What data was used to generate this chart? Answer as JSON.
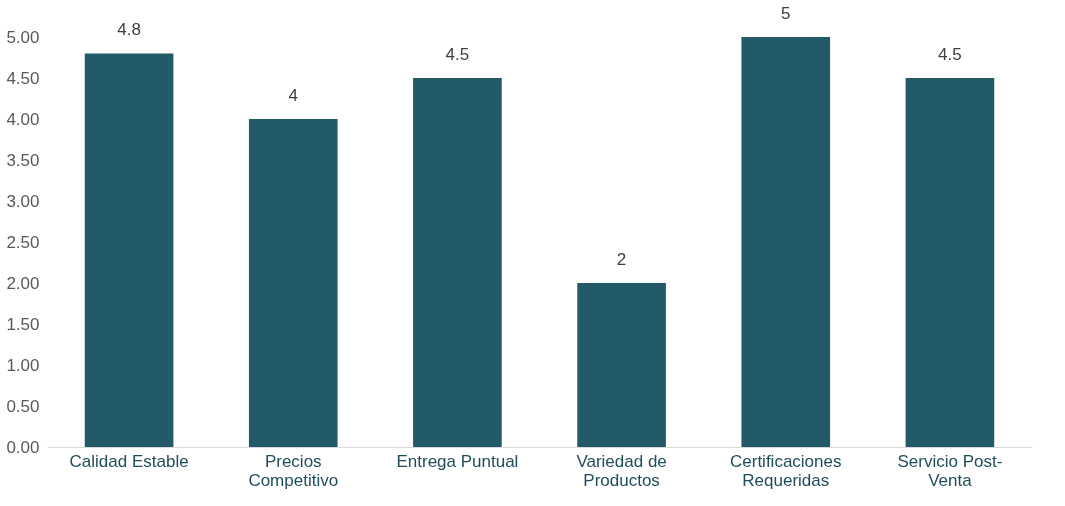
{
  "chart_data": {
    "type": "bar",
    "categories": [
      "Calidad Estable",
      "Precios\nCompetitivo",
      "Entrega Puntual",
      "Variedad de\nProductos",
      "Certificaciones\nRequeridas",
      "Servicio Post-\nVenta"
    ],
    "values": [
      4.8,
      4,
      4.5,
      2,
      5,
      4.5
    ],
    "color": "#235a67",
    "ylim": [
      0,
      5
    ],
    "yticks": [
      {
        "value": 0,
        "label": "0.00"
      },
      {
        "value": 0.5,
        "label": "0.50"
      },
      {
        "value": 1,
        "label": "1.00"
      },
      {
        "value": 1.5,
        "label": "1.50"
      },
      {
        "value": 2,
        "label": "2.00"
      },
      {
        "value": 2.5,
        "label": "2.50"
      },
      {
        "value": 3,
        "label": "3.00"
      },
      {
        "value": 3.5,
        "label": "3.50"
      },
      {
        "value": 4,
        "label": "4.00"
      },
      {
        "value": 4.5,
        "label": "4.50"
      },
      {
        "value": 5,
        "label": "5.00"
      }
    ],
    "grid": false,
    "data_labels": true
  }
}
